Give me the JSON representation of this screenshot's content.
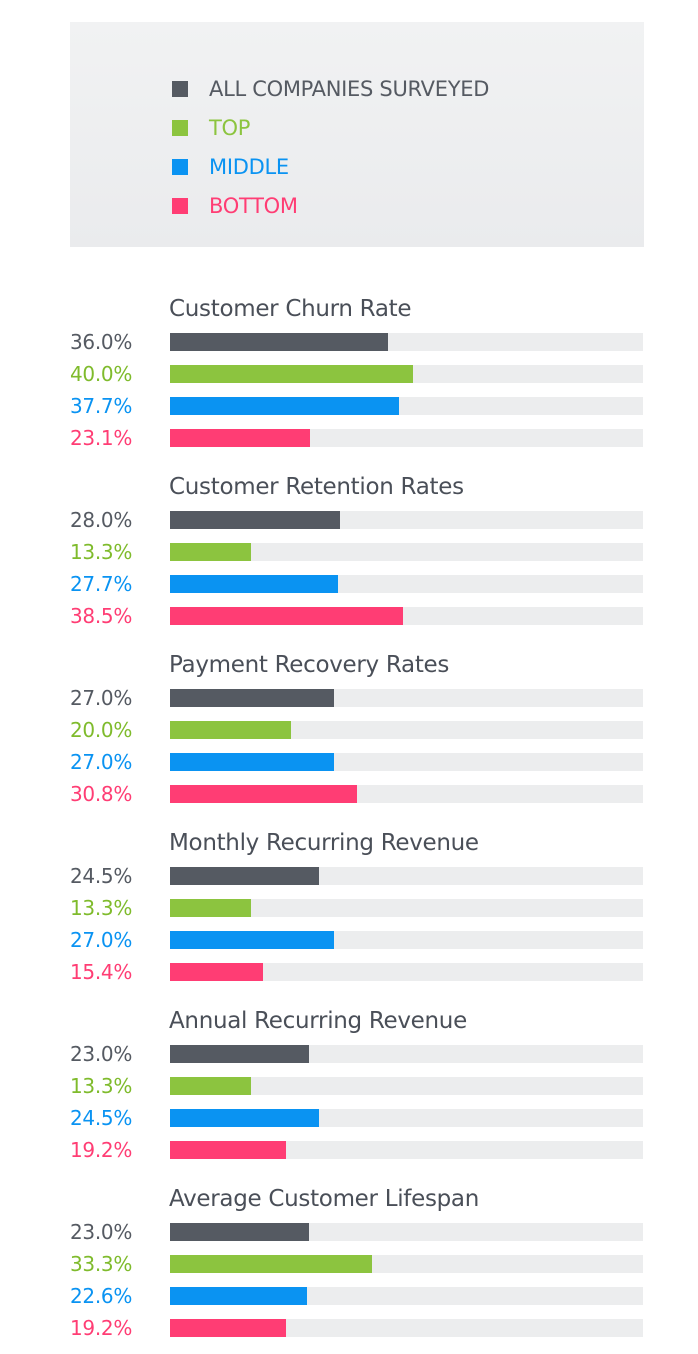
{
  "legend": [
    {
      "label": "ALL COMPANIES SURVEYED",
      "color": "#555a62"
    },
    {
      "label": "TOP",
      "color": "#8cc43f"
    },
    {
      "label": "MIDDLE",
      "color": "#0a93f2"
    },
    {
      "label": "BOTTOM",
      "color": "#ff3d74"
    }
  ],
  "chart_data": {
    "type": "bar",
    "orientation": "horizontal",
    "xlim": [
      0,
      78
    ],
    "grid": false,
    "legend_placement": "top",
    "series_names": [
      "ALL COMPANIES SURVEYED",
      "TOP",
      "MIDDLE",
      "BOTTOM"
    ],
    "series_colors": [
      "#555a62",
      "#8cc43f",
      "#0a93f2",
      "#ff3d74"
    ],
    "label_colors": [
      "#555a62",
      "#7fbb2c",
      "#0a93f2",
      "#ff3d74"
    ],
    "groups": [
      {
        "title": "Customer Churn Rate",
        "values": [
          36.0,
          40.0,
          37.7,
          23.1
        ],
        "labels": [
          "36.0%",
          "40.0%",
          "37.7%",
          "23.1%"
        ]
      },
      {
        "title": "Customer Retention Rates",
        "values": [
          28.0,
          13.3,
          27.7,
          38.5
        ],
        "labels": [
          "28.0%",
          "13.3%",
          "27.7%",
          "38.5%"
        ]
      },
      {
        "title": "Payment Recovery Rates",
        "values": [
          27.0,
          20.0,
          27.0,
          30.8
        ],
        "labels": [
          "27.0%",
          "20.0%",
          "27.0%",
          "30.8%"
        ]
      },
      {
        "title": "Monthly Recurring Revenue",
        "values": [
          24.5,
          13.3,
          27.0,
          15.4
        ],
        "labels": [
          "24.5%",
          "13.3%",
          "27.0%",
          "15.4%"
        ]
      },
      {
        "title": "Annual Recurring Revenue",
        "values": [
          23.0,
          13.3,
          24.5,
          19.2
        ],
        "labels": [
          "23.0%",
          "13.3%",
          "24.5%",
          "19.2%"
        ]
      },
      {
        "title": "Average Customer Lifespan",
        "values": [
          23.0,
          33.3,
          22.6,
          19.2
        ],
        "labels": [
          "23.0%",
          "33.3%",
          "22.6%",
          "19.2%"
        ]
      }
    ]
  }
}
